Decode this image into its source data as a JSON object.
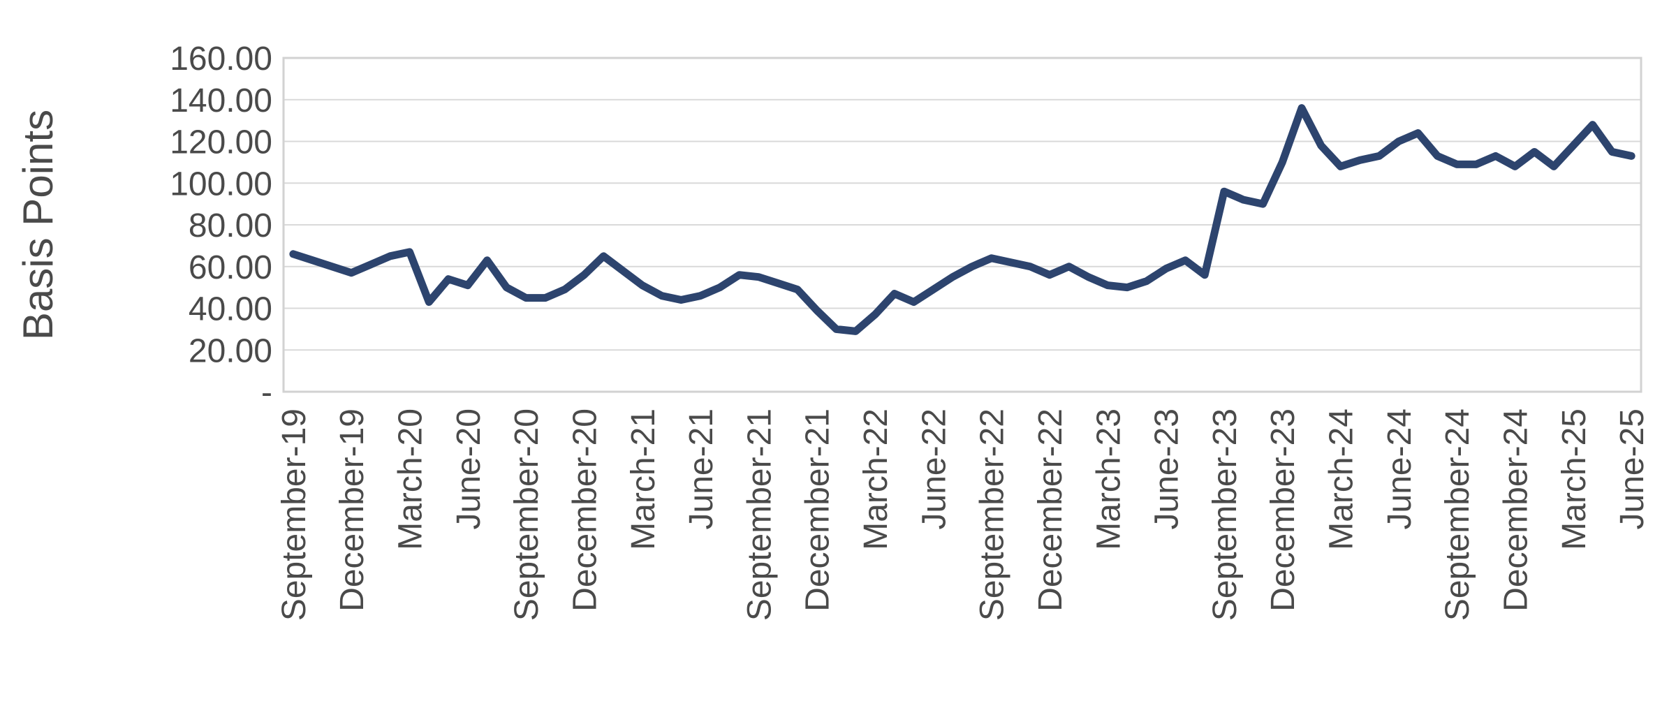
{
  "chart_data": {
    "type": "line",
    "title": "",
    "ylabel": "Basis Points",
    "xlabel": "",
    "legend": "none",
    "grid": "horizontal",
    "ylim": [
      0,
      160
    ],
    "y_ticks": [
      {
        "label": "160.00",
        "value": 160
      },
      {
        "label": "140.00",
        "value": 140
      },
      {
        "label": "120.00",
        "value": 120
      },
      {
        "label": "100.00",
        "value": 100
      },
      {
        "label": "80.00",
        "value": 80
      },
      {
        "label": "60.00",
        "value": 60
      },
      {
        "label": "40.00",
        "value": 40
      },
      {
        "label": "20.00",
        "value": 20
      },
      {
        "label": "-",
        "value": 0
      }
    ],
    "x_tick_every": 3,
    "x_tick_labels": [
      "September-19",
      "December-19",
      "March-20",
      "June-20",
      "September-20",
      "December-20",
      "March-21",
      "June-21",
      "September-21",
      "December-21",
      "March-22",
      "June-22",
      "September-22",
      "December-22",
      "March-23",
      "June-23",
      "September-23",
      "December-23",
      "March-24",
      "June-24",
      "September-24",
      "December-24",
      "March-25",
      "June-25"
    ],
    "x": [
      "September-19",
      "October-19",
      "November-19",
      "December-19",
      "January-20",
      "February-20",
      "March-20",
      "April-20",
      "May-20",
      "June-20",
      "July-20",
      "August-20",
      "September-20",
      "October-20",
      "November-20",
      "December-20",
      "January-21",
      "February-21",
      "March-21",
      "April-21",
      "May-21",
      "June-21",
      "July-21",
      "August-21",
      "September-21",
      "October-21",
      "November-21",
      "December-21",
      "January-22",
      "February-22",
      "March-22",
      "April-22",
      "May-22",
      "June-22",
      "July-22",
      "August-22",
      "September-22",
      "October-22",
      "November-22",
      "December-22",
      "January-23",
      "February-23",
      "March-23",
      "April-23",
      "May-23",
      "June-23",
      "July-23",
      "August-23",
      "September-23",
      "October-23",
      "November-23",
      "December-23",
      "January-24",
      "February-24",
      "March-24",
      "April-24",
      "May-24",
      "June-24",
      "July-24",
      "August-24",
      "September-24",
      "October-24",
      "November-24",
      "December-24",
      "January-25",
      "February-25",
      "March-25",
      "April-25",
      "May-25",
      "June-25"
    ],
    "values": [
      66,
      63,
      60,
      57,
      61,
      65,
      67,
      43,
      54,
      51,
      63,
      50,
      45,
      45,
      49,
      56,
      65,
      58,
      51,
      46,
      44,
      46,
      50,
      56,
      55,
      52,
      49,
      39,
      30,
      29,
      37,
      47,
      43,
      49,
      55,
      60,
      64,
      62,
      60,
      56,
      60,
      55,
      51,
      50,
      53,
      59,
      63,
      56,
      96,
      92,
      90,
      110,
      136,
      118,
      108,
      111,
      113,
      120,
      124,
      113,
      109,
      109,
      113,
      108,
      115,
      108,
      118,
      128,
      115,
      113
    ],
    "line_color": "#2d446e",
    "grid_color": "#d9d9d9",
    "border_color": "#d2d2d2",
    "axis_text_color": "#4a4a4a"
  }
}
